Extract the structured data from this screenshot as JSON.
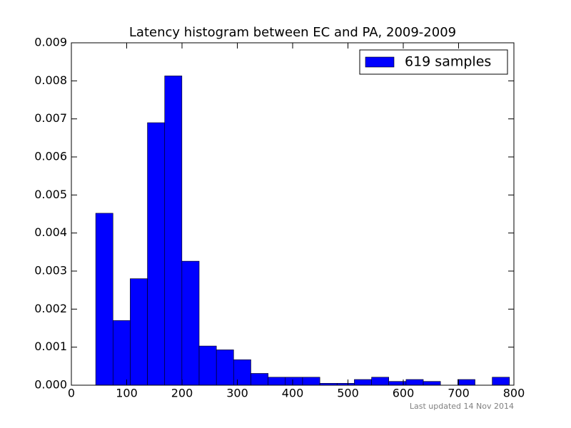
{
  "chart_data": {
    "type": "histogram",
    "title": "Latency histogram between EC and PA, 2009-2009",
    "footnote": "Last updated 14 Nov 2014",
    "bins": [
      44,
      75.2,
      106.3,
      137.5,
      168.7,
      199.8,
      231,
      262.2,
      293.3,
      324.5,
      355.7,
      386.8,
      418,
      449.2,
      480.3,
      511.5,
      542.7,
      573.8,
      605,
      636.2,
      667.3,
      698.5,
      729.7,
      760.8,
      792
    ],
    "series": [
      {
        "name": "619 samples",
        "color": "#0000ff",
        "values": [
          0.00452,
          0.0017,
          0.0028,
          0.0069,
          0.00813,
          0.00326,
          0.00103,
          0.00093,
          0.00067,
          0.00031,
          0.00021,
          0.00021,
          0.00021,
          5e-05,
          5e-05,
          0.00015,
          0.00021,
          0.0001,
          0.00015,
          0.0001,
          0,
          0.00015,
          0,
          0.00021
        ]
      }
    ],
    "xlim": [
      0,
      800
    ],
    "xticks": [
      0,
      100,
      200,
      300,
      400,
      500,
      600,
      700,
      800
    ],
    "ylim": [
      0,
      0.009
    ],
    "yticks": [
      {
        "value": 0,
        "label": "0.000"
      },
      {
        "value": 0.001,
        "label": "0.001"
      },
      {
        "value": 0.002,
        "label": "0.002"
      },
      {
        "value": 0.003,
        "label": "0.003"
      },
      {
        "value": 0.004,
        "label": "0.004"
      },
      {
        "value": 0.005,
        "label": "0.005"
      },
      {
        "value": 0.006,
        "label": "0.006"
      },
      {
        "value": 0.007,
        "label": "0.007"
      },
      {
        "value": 0.008,
        "label": "0.008"
      },
      {
        "value": 0.009,
        "label": "0.009"
      }
    ],
    "legend": "upper right"
  }
}
